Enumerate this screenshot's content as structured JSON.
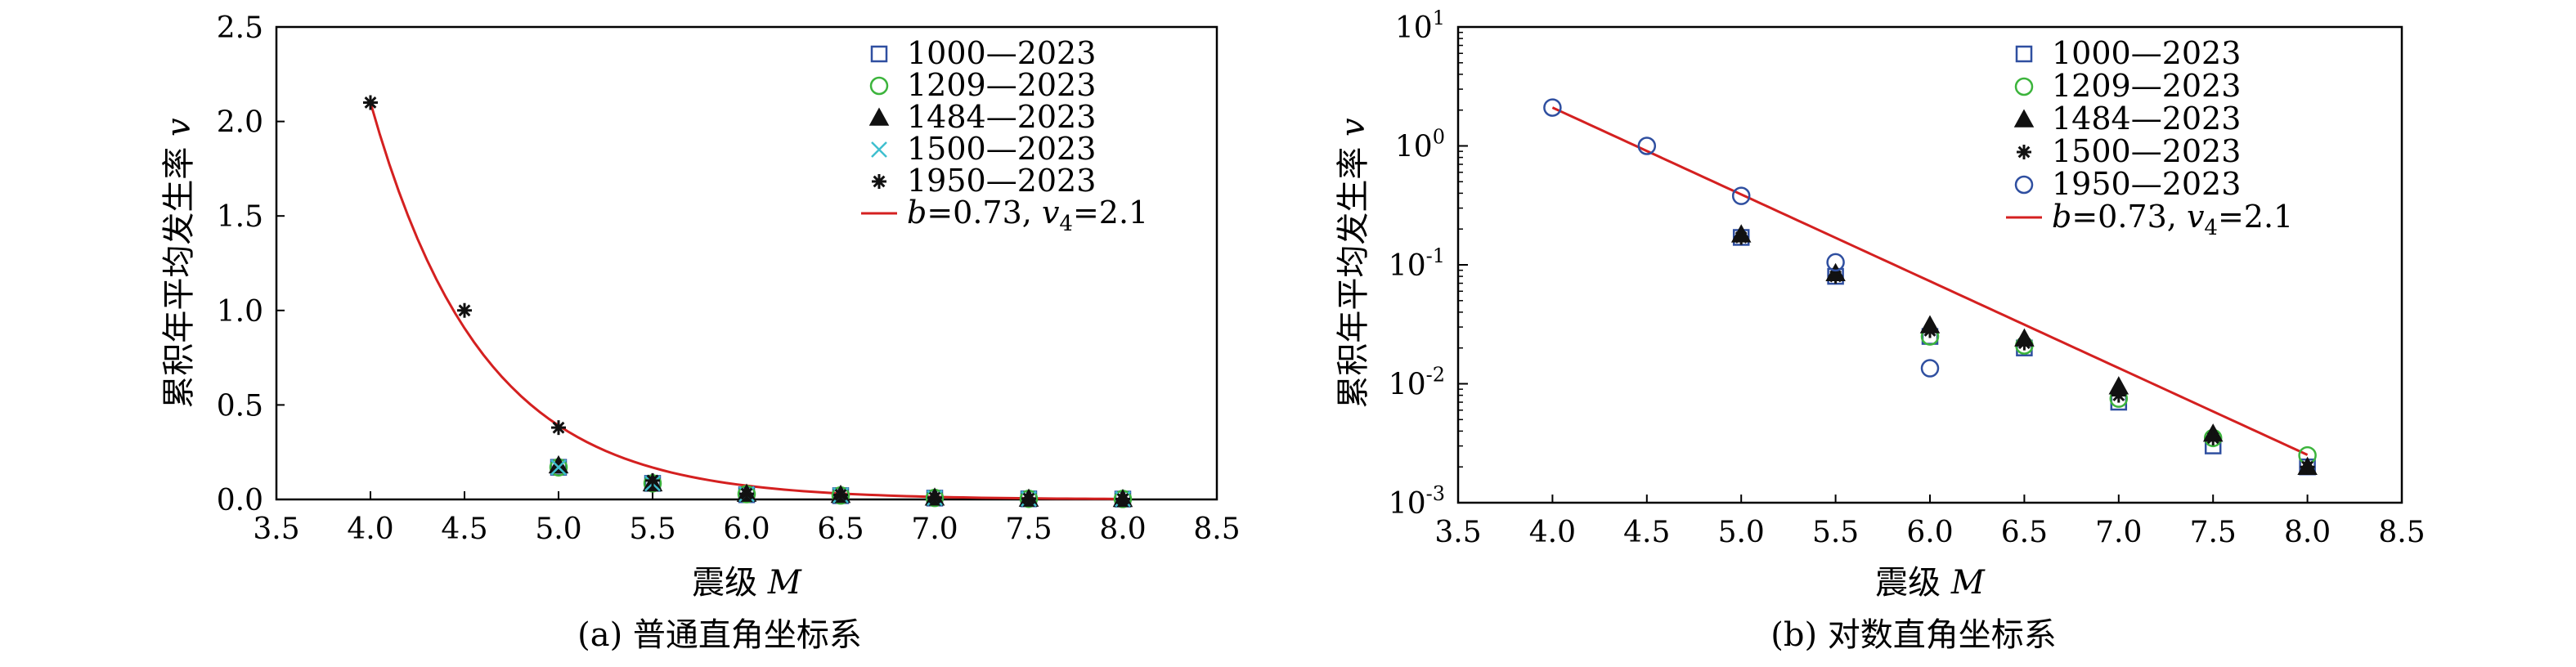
{
  "chart_data": [
    {
      "type": "scatter",
      "panel": "a",
      "caption": "(a) 普通直角坐标系",
      "xlabel": {
        "text": "震级 ",
        "var": "M"
      },
      "ylabel": {
        "text": "累积年平均发生率 ",
        "var": "v"
      },
      "xlim": [
        3.5,
        8.5
      ],
      "ylim": [
        0,
        2.5
      ],
      "yscale": "linear",
      "xticks": [
        "3.5",
        "4.0",
        "4.5",
        "5.0",
        "5.5",
        "6.0",
        "6.5",
        "7.0",
        "7.5",
        "8.0",
        "8.5"
      ],
      "yticks": [
        "0.0",
        "0.5",
        "1.0",
        "1.5",
        "2.0",
        "2.5"
      ],
      "legend_position": "top-right",
      "series": [
        {
          "name": "1000—2023",
          "marker": "square",
          "color": "#2f4fa0",
          "x": [
            5.0,
            5.5,
            6.0,
            6.5,
            7.0,
            7.5,
            8.0
          ],
          "y": [
            0.17,
            0.085,
            0.025,
            0.02,
            0.007,
            0.003,
            0.002
          ]
        },
        {
          "name": "1209—2023",
          "marker": "circle",
          "color": "#3cb43c",
          "x": [
            5.0,
            5.5,
            6.0,
            6.5,
            7.0,
            7.5,
            8.0
          ],
          "y": [
            0.17,
            0.085,
            0.028,
            0.021,
            0.008,
            0.0035,
            0.0025
          ]
        },
        {
          "name": "1484—2023",
          "marker": "triangle",
          "color": "#111111",
          "x": [
            5.0,
            5.5,
            6.0,
            6.5,
            7.0,
            7.5,
            8.0
          ],
          "y": [
            0.18,
            0.085,
            0.03,
            0.024,
            0.0095,
            0.0038,
            0.002
          ]
        },
        {
          "name": "1500—2023",
          "marker": "x",
          "color": "#3fbfcf",
          "x": [
            5.0,
            5.5,
            6.0,
            6.5,
            7.0,
            7.5,
            8.0
          ],
          "y": [
            0.17,
            0.085,
            0.028,
            0.022,
            0.008,
            0.0035,
            0.002
          ]
        },
        {
          "name": "1950—2023",
          "marker": "asterisk",
          "color": "#111111",
          "x": [
            4.0,
            4.5,
            5.0,
            5.5,
            6.0,
            6.5,
            7.0,
            7.5,
            8.0
          ],
          "y": [
            2.1,
            1.0,
            0.38,
            0.1,
            0.03,
            0.024,
            0.009,
            0.004,
            0.002
          ]
        }
      ],
      "fit": {
        "color": "#d42020",
        "legend_b": "b",
        "legend_b_value": "=0.73, ",
        "legend_v": "v",
        "legend_v_sub": "4",
        "legend_v_value": "=2.1",
        "b": 0.73,
        "v4": 2.1,
        "x_range": [
          4.0,
          8.0
        ]
      }
    },
    {
      "type": "scatter",
      "panel": "b",
      "caption": "(b) 对数直角坐标系",
      "xlabel": {
        "text": "震级 ",
        "var": "M"
      },
      "ylabel": {
        "text": "累积年平均发生率 ",
        "var": "v"
      },
      "xlim": [
        3.5,
        8.5
      ],
      "ylim": [
        0.001,
        10
      ],
      "yscale": "log",
      "xticks": [
        "3.5",
        "4.0",
        "4.5",
        "5.0",
        "5.5",
        "6.0",
        "6.5",
        "7.0",
        "7.5",
        "8.0",
        "8.5"
      ],
      "yticks_log": [
        {
          "base": "10",
          "exp": "-3",
          "value": 0.001
        },
        {
          "base": "10",
          "exp": "-2",
          "value": 0.01
        },
        {
          "base": "10",
          "exp": "-1",
          "value": 0.1
        },
        {
          "base": "10",
          "exp": "0",
          "value": 1
        },
        {
          "base": "10",
          "exp": "1",
          "value": 10
        }
      ],
      "legend_position": "top-right",
      "series": [
        {
          "name": "1000—2023",
          "marker": "square",
          "color": "#2f4fa0",
          "x": [
            5.0,
            5.5,
            6.0,
            6.5,
            7.0,
            7.5,
            8.0
          ],
          "y": [
            0.17,
            0.08,
            0.025,
            0.02,
            0.007,
            0.003,
            0.002
          ]
        },
        {
          "name": "1209—2023",
          "marker": "circle",
          "color": "#3cb43c",
          "x": [
            6.0,
            6.5,
            7.0,
            7.5,
            8.0
          ],
          "y": [
            0.025,
            0.021,
            0.0075,
            0.0035,
            0.0025
          ]
        },
        {
          "name": "1484—2023",
          "marker": "triangle",
          "color": "#111111",
          "x": [
            5.0,
            5.5,
            6.0,
            6.5,
            7.0,
            7.5,
            8.0
          ],
          "y": [
            0.18,
            0.085,
            0.031,
            0.024,
            0.0095,
            0.0038,
            0.002
          ]
        },
        {
          "name": "1500—2023",
          "marker": "asterisk",
          "color": "#111111",
          "x": [
            5.0,
            5.5,
            6.0,
            6.5,
            7.0,
            7.5,
            8.0
          ],
          "y": [
            0.17,
            0.08,
            0.028,
            0.022,
            0.008,
            0.0035,
            0.002
          ]
        },
        {
          "name": "1950—2023",
          "marker": "circle",
          "color": "#2f4fa0",
          "x": [
            4.0,
            4.5,
            5.0,
            5.5,
            6.0
          ],
          "y": [
            2.1,
            1.0,
            0.38,
            0.105,
            0.0135
          ]
        }
      ],
      "fit": {
        "color": "#d42020",
        "legend_b": "b",
        "legend_b_value": "=0.73, ",
        "legend_v": "v",
        "legend_v_sub": "4",
        "legend_v_value": "=2.1",
        "b": 0.73,
        "v4": 2.1,
        "x_range": [
          4.0,
          8.0
        ]
      }
    }
  ]
}
